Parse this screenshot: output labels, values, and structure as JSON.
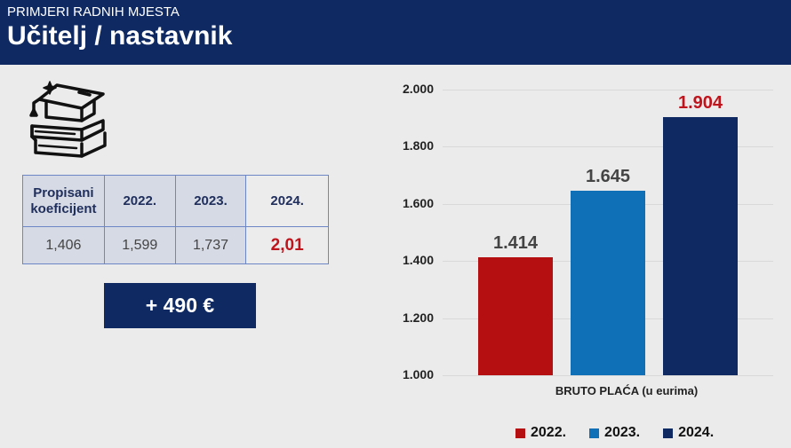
{
  "header": {
    "kicker": "PRIMJERI RADNIH MJESTA",
    "title": "Učitelj / nastavnik"
  },
  "icon": "graduation-cap-books-icon",
  "table": {
    "headers": [
      "Propisani koeficijent",
      "2022.",
      "2023.",
      "2024."
    ],
    "values": [
      "1,406",
      "1,599",
      "1,737",
      "2,01"
    ]
  },
  "delta_label": "+ 490 €",
  "colors": {
    "navy": "#0f2a63",
    "red": "#b50f12",
    "blue": "#0f70b7",
    "highlight_red": "#c0141c"
  },
  "chart_data": {
    "type": "bar",
    "title": "",
    "xlabel": "BRUTO PLAĆA (u eurima)",
    "ylabel": "",
    "categories": [
      "BRUTO PLAĆA (u eurima)"
    ],
    "series": [
      {
        "name": "2022.",
        "values": [
          1414
        ],
        "label": "1.414",
        "color": "#b50f12"
      },
      {
        "name": "2023.",
        "values": [
          1645
        ],
        "label": "1.645",
        "color": "#0f70b7"
      },
      {
        "name": "2024.",
        "values": [
          1904
        ],
        "label": "1.904",
        "color": "#0f2a63"
      }
    ],
    "ylim": [
      1000,
      2000
    ],
    "yticks": [
      "2.000",
      "1.800",
      "1.600",
      "1.400",
      "1.200",
      "1.000"
    ],
    "grid": true,
    "legend_position": "bottom",
    "legend": [
      "2022.",
      "2023.",
      "2024."
    ]
  }
}
